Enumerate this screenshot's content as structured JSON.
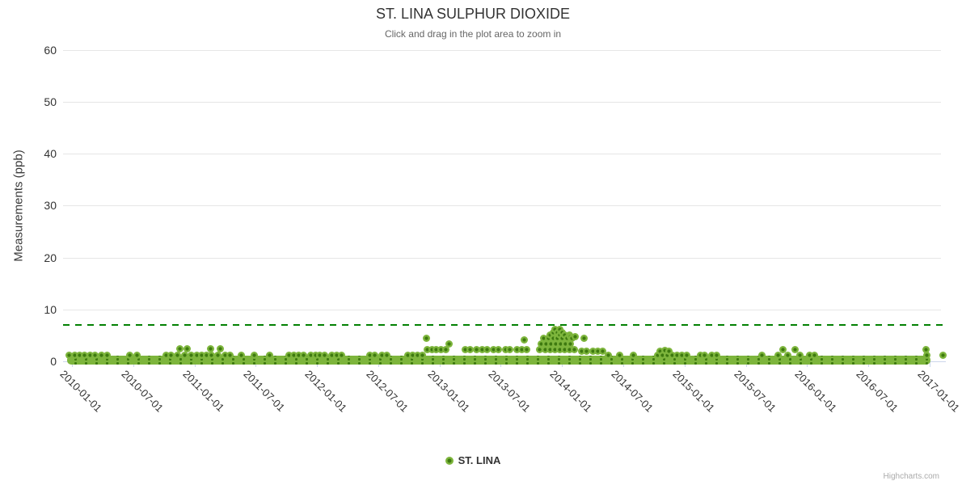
{
  "credits": "Highcharts.com",
  "colors": {
    "series_green": "#7db53c",
    "series_green_dark": "#3e7a10",
    "threshold_green": "#038103",
    "gridline": "#e6e6e6",
    "axis_line": "#ccd6eb",
    "title_text": "#333333",
    "subtitle_text": "#666666"
  },
  "chart_data": {
    "type": "scatter",
    "title": "ST. LINA SULPHUR DIOXIDE",
    "subtitle": "Click and drag in the plot area to zoom in",
    "ylabel": "Measurements (ppb)",
    "xlabel": "",
    "ylim": [
      0,
      60
    ],
    "y_ticks": [
      0,
      10,
      20,
      30,
      40,
      50,
      60
    ],
    "x_tick_labels": [
      "2010-01-01",
      "2010-07-01",
      "2011-01-01",
      "2011-07-01",
      "2012-01-01",
      "2012-07-01",
      "2013-01-01",
      "2013-07-01",
      "2014-01-01",
      "2014-07-01",
      "2015-01-01",
      "2015-07-01",
      "2016-01-01",
      "2016-07-01",
      "2017-01-01"
    ],
    "x_tick_interval_years": 0.5,
    "grid": "horizontal",
    "legend_position": "bottom-center",
    "threshold_line": {
      "value": 7,
      "style": "dashed",
      "color": "#038103"
    },
    "series": [
      {
        "name": "ST. LINA",
        "color": "#7db53c",
        "marker_inner_color": "#3e7a10",
        "baseline_band": {
          "t_from": -0.04,
          "t_to": 7.01,
          "ppb_min": 0,
          "ppb_max": 0.5
        },
        "points": [
          [
            -0.02,
            1.1
          ],
          [
            0.02,
            1.1
          ],
          [
            0.06,
            1.1
          ],
          [
            0.1,
            1.2
          ],
          [
            0.15,
            1.1
          ],
          [
            0.19,
            1.2
          ],
          [
            0.24,
            1.1
          ],
          [
            0.29,
            1.1
          ],
          [
            0.47,
            1.1
          ],
          [
            0.53,
            1.1
          ],
          [
            0.77,
            1.1
          ],
          [
            0.81,
            1.2
          ],
          [
            0.86,
            1.1
          ],
          [
            0.88,
            2.4
          ],
          [
            0.92,
            1.1
          ],
          [
            0.94,
            2.4
          ],
          [
            0.97,
            1.2
          ],
          [
            1.02,
            1.1
          ],
          [
            1.06,
            1.1
          ],
          [
            1.1,
            1.1
          ],
          [
            1.13,
            2.4
          ],
          [
            1.14,
            1.2
          ],
          [
            1.19,
            1.1
          ],
          [
            1.21,
            2.4
          ],
          [
            1.25,
            1.1
          ],
          [
            1.29,
            1.1
          ],
          [
            1.38,
            1.1
          ],
          [
            1.49,
            1.1
          ],
          [
            1.61,
            1.1
          ],
          [
            1.77,
            1.1
          ],
          [
            1.81,
            1.2
          ],
          [
            1.85,
            1.1
          ],
          [
            1.89,
            1.1
          ],
          [
            1.95,
            1.2
          ],
          [
            1.99,
            1.1
          ],
          [
            2.02,
            1.1
          ],
          [
            2.06,
            1.2
          ],
          [
            2.12,
            1.1
          ],
          [
            2.16,
            1.1
          ],
          [
            2.2,
            1.1
          ],
          [
            2.43,
            1.1
          ],
          [
            2.47,
            1.1
          ],
          [
            2.53,
            1.2
          ],
          [
            2.57,
            1.1
          ],
          [
            2.74,
            1.1
          ],
          [
            2.78,
            1.1
          ],
          [
            2.82,
            1.2
          ],
          [
            2.86,
            1.1
          ],
          [
            2.89,
            4.4
          ],
          [
            2.9,
            2.3
          ],
          [
            2.94,
            2.3
          ],
          [
            2.97,
            2.2
          ],
          [
            3.01,
            2.3
          ],
          [
            3.05,
            2.3
          ],
          [
            3.08,
            3.4
          ],
          [
            3.21,
            2.3
          ],
          [
            3.25,
            2.3
          ],
          [
            3.3,
            2.2
          ],
          [
            3.35,
            2.3
          ],
          [
            3.39,
            2.3
          ],
          [
            3.44,
            2.2
          ],
          [
            3.48,
            2.3
          ],
          [
            3.54,
            2.3
          ],
          [
            3.57,
            2.2
          ],
          [
            3.63,
            2.3
          ],
          [
            3.67,
            2.3
          ],
          [
            3.69,
            4.2
          ],
          [
            3.71,
            2.3
          ],
          [
            3.82,
            2.2
          ],
          [
            3.83,
            3.3
          ],
          [
            3.85,
            4.4
          ],
          [
            3.86,
            2.2
          ],
          [
            3.87,
            3.3
          ],
          [
            3.89,
            4.4
          ],
          [
            3.9,
            2.2
          ],
          [
            3.9,
            5.0
          ],
          [
            3.91,
            3.3
          ],
          [
            3.93,
            4.4
          ],
          [
            3.93,
            5.6
          ],
          [
            3.94,
            2.2
          ],
          [
            3.94,
            6.1
          ],
          [
            3.95,
            3.3
          ],
          [
            3.96,
            4.4
          ],
          [
            3.96,
            5.6
          ],
          [
            3.98,
            2.2
          ],
          [
            3.98,
            5.0
          ],
          [
            3.98,
            6.1
          ],
          [
            3.99,
            3.3
          ],
          [
            4.0,
            4.4
          ],
          [
            4.0,
            5.6
          ],
          [
            4.02,
            2.2
          ],
          [
            4.02,
            5.0
          ],
          [
            4.03,
            3.3
          ],
          [
            4.04,
            4.4
          ],
          [
            4.06,
            2.2
          ],
          [
            4.06,
            5.0
          ],
          [
            4.07,
            3.3
          ],
          [
            4.07,
            4.8
          ],
          [
            4.08,
            4.4
          ],
          [
            4.1,
            2.2
          ],
          [
            4.11,
            4.8
          ],
          [
            4.16,
            1.9
          ],
          [
            4.18,
            4.5
          ],
          [
            4.2,
            1.9
          ],
          [
            4.25,
            1.9
          ],
          [
            4.29,
            1.9
          ],
          [
            4.33,
            2.0
          ],
          [
            4.38,
            1.1
          ],
          [
            4.47,
            1.1
          ],
          [
            4.58,
            1.1
          ],
          [
            4.78,
            1.1
          ],
          [
            4.8,
            2.0
          ],
          [
            4.82,
            1.1
          ],
          [
            4.84,
            2.1
          ],
          [
            4.86,
            1.2
          ],
          [
            4.87,
            2.0
          ],
          [
            4.9,
            1.1
          ],
          [
            4.94,
            1.1
          ],
          [
            4.98,
            1.2
          ],
          [
            5.02,
            1.1
          ],
          [
            5.13,
            1.1
          ],
          [
            5.16,
            1.1
          ],
          [
            5.22,
            1.1
          ],
          [
            5.26,
            1.1
          ],
          [
            5.63,
            1.1
          ],
          [
            5.76,
            1.1
          ],
          [
            5.8,
            2.3
          ],
          [
            5.84,
            1.1
          ],
          [
            5.9,
            2.3
          ],
          [
            5.94,
            1.1
          ],
          [
            6.02,
            1.1
          ],
          [
            6.06,
            1.1
          ],
          [
            6.97,
            2.3
          ],
          [
            6.98,
            1.1
          ],
          [
            7.11,
            1.2
          ]
        ]
      }
    ]
  }
}
